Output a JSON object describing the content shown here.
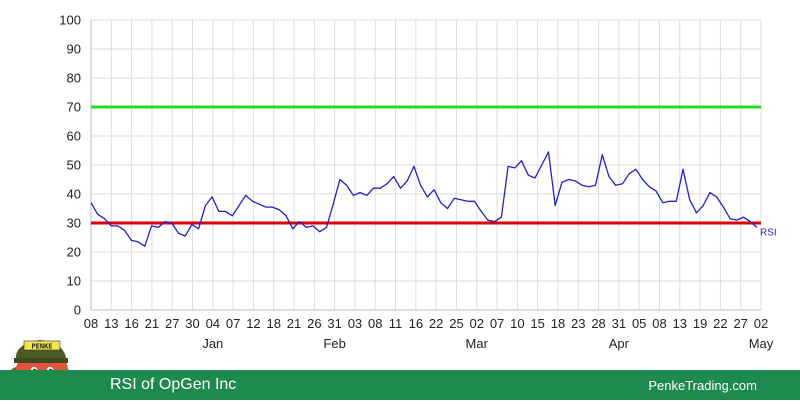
{
  "footer": {
    "title": "RSI of OpGen Inc",
    "site": "PenkeTrading.com"
  },
  "logo": {
    "text": "PENKE"
  },
  "colors": {
    "rsi_line": "#1f1fd0",
    "overbought_line": "#22dd22",
    "oversold_line": "#dd0000",
    "footer_bg": "#1e8a4e"
  },
  "chart_data": {
    "type": "line",
    "ylim": [
      0,
      100
    ],
    "y_ticks": [
      "0",
      "10",
      "20",
      "30",
      "40",
      "50",
      "60",
      "70",
      "80",
      "90",
      "100"
    ],
    "x_ticks": [
      "08",
      "13",
      "16",
      "21",
      "27",
      "30",
      "04",
      "07",
      "12",
      "18",
      "21",
      "26",
      "31",
      "03",
      "08",
      "11",
      "16",
      "22",
      "25",
      "02",
      "07",
      "10",
      "15",
      "18",
      "23",
      "28",
      "31",
      "05",
      "08",
      "13",
      "19",
      "22",
      "27",
      "02"
    ],
    "month_labels": [
      "Jan",
      "Feb",
      "Mar",
      "Apr",
      "May"
    ],
    "reference_lines": [
      {
        "value": 70,
        "color": "#22dd22"
      },
      {
        "value": 30,
        "color": "#dd0000"
      }
    ],
    "series": [
      {
        "name": "RSI",
        "values": [
          37,
          33,
          31.5,
          29,
          29,
          27.5,
          24,
          23.5,
          22,
          29,
          28.5,
          30.5,
          30,
          26.5,
          25.5,
          29.5,
          28,
          36,
          39,
          34,
          34,
          32.5,
          36,
          39.5,
          37.5,
          36.5,
          35.5,
          35.5,
          34.5,
          32.5,
          28,
          30.5,
          28.5,
          29,
          27,
          28.5,
          36.5,
          45,
          43,
          39.5,
          40.5,
          39.5,
          42,
          42,
          43.5,
          46,
          42,
          44.5,
          49.5,
          43,
          39,
          41.5,
          37,
          35,
          38.5,
          38,
          37.5,
          37.5,
          34,
          31,
          30.5,
          32,
          49.5,
          49,
          51.5,
          46.5,
          45.5,
          50,
          54.5,
          36,
          44,
          45,
          44.5,
          43,
          42.5,
          43,
          53.5,
          46,
          43,
          43.5,
          47,
          48.5,
          45,
          42.5,
          41,
          37,
          37.5,
          37.5,
          48.5,
          38,
          33.5,
          36,
          40.5,
          39,
          35.5,
          31.5,
          31,
          32,
          30.5,
          28.5
        ]
      }
    ]
  }
}
